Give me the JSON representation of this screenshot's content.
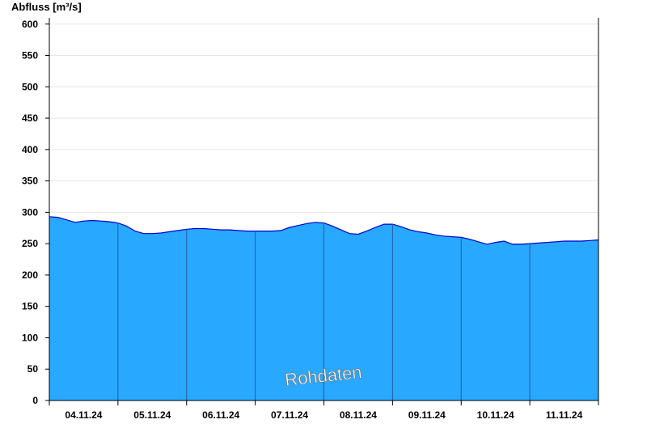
{
  "chart_data": {
    "type": "area",
    "ylabel": "Abfluss [m³/s]",
    "ylim": [
      0,
      610
    ],
    "yticks": [
      0,
      50,
      100,
      150,
      200,
      250,
      300,
      350,
      400,
      450,
      500,
      550,
      600
    ],
    "xlim": [
      "2024-11-04T00:00",
      "2024-11-12T00:00"
    ],
    "xtick_labels": [
      "04.11.24",
      "05.11.24",
      "06.11.24",
      "07.11.24",
      "08.11.24",
      "09.11.24",
      "10.11.24",
      "11.11.24"
    ],
    "grid": true,
    "fill_color": "#29a8ff",
    "line_color": "#0000cc",
    "watermark": "Rohdaten",
    "series": [
      {
        "x": [
          "2024-11-04T00:00",
          "2024-11-04T03:00",
          "2024-11-04T06:00",
          "2024-11-04T09:00",
          "2024-11-04T12:00",
          "2024-11-04T15:00",
          "2024-11-04T18:00",
          "2024-11-04T21:00",
          "2024-11-05T00:00",
          "2024-11-05T03:00",
          "2024-11-05T06:00",
          "2024-11-05T09:00",
          "2024-11-05T12:00",
          "2024-11-05T15:00",
          "2024-11-05T18:00",
          "2024-11-05T21:00",
          "2024-11-06T00:00",
          "2024-11-06T03:00",
          "2024-11-06T06:00",
          "2024-11-06T09:00",
          "2024-11-06T12:00",
          "2024-11-06T15:00",
          "2024-11-06T18:00",
          "2024-11-06T21:00",
          "2024-11-07T00:00",
          "2024-11-07T03:00",
          "2024-11-07T06:00",
          "2024-11-07T09:00",
          "2024-11-07T12:00",
          "2024-11-07T15:00",
          "2024-11-07T18:00",
          "2024-11-07T21:00",
          "2024-11-08T00:00",
          "2024-11-08T03:00",
          "2024-11-08T06:00",
          "2024-11-08T09:00",
          "2024-11-08T12:00",
          "2024-11-08T15:00",
          "2024-11-08T18:00",
          "2024-11-08T21:00",
          "2024-11-09T00:00",
          "2024-11-09T03:00",
          "2024-11-09T06:00",
          "2024-11-09T09:00",
          "2024-11-09T12:00",
          "2024-11-09T15:00",
          "2024-11-09T18:00",
          "2024-11-09T21:00",
          "2024-11-10T00:00",
          "2024-11-10T03:00",
          "2024-11-10T06:00",
          "2024-11-10T09:00",
          "2024-11-10T12:00",
          "2024-11-10T15:00",
          "2024-11-10T18:00",
          "2024-11-10T21:00",
          "2024-11-11T00:00",
          "2024-11-11T03:00",
          "2024-11-11T06:00",
          "2024-11-11T09:00",
          "2024-11-11T12:00",
          "2024-11-11T15:00",
          "2024-11-11T18:00",
          "2024-11-11T21:00",
          "2024-11-12T00:00"
        ],
        "values": [
          293,
          292,
          288,
          284,
          286,
          287,
          286,
          285,
          283,
          278,
          270,
          266,
          266,
          267,
          269,
          271,
          273,
          274,
          274,
          273,
          272,
          272,
          271,
          270,
          270,
          270,
          270,
          271,
          276,
          279,
          282,
          284,
          283,
          278,
          272,
          266,
          265,
          270,
          276,
          281,
          281,
          277,
          272,
          269,
          267,
          264,
          262,
          261,
          260,
          257,
          253,
          249,
          252,
          254,
          249,
          249,
          250,
          251,
          252,
          253,
          254,
          254,
          254,
          255,
          256
        ]
      }
    ]
  }
}
